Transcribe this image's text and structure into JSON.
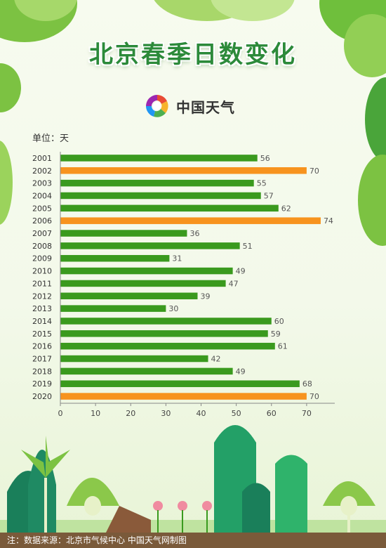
{
  "title": "北京春季日数变化",
  "logo": {
    "text": "中国天气",
    "icon": "china-weather-logo-icon"
  },
  "unit_label": "单位：天",
  "footer": "注：数据来源：北京市气候中心 中国天气网制图",
  "colors": {
    "normal": "#3a9a1e",
    "highlight": "#f7931e",
    "title": "#2c8a3a",
    "footer_bg": "#7a5a3a"
  },
  "chart_data": {
    "type": "bar",
    "orientation": "horizontal",
    "categories": [
      "2001",
      "2002",
      "2003",
      "2004",
      "2005",
      "2006",
      "2007",
      "2008",
      "2009",
      "2010",
      "2011",
      "2012",
      "2013",
      "2014",
      "2015",
      "2016",
      "2017",
      "2018",
      "2019",
      "2020"
    ],
    "values": [
      56,
      70,
      55,
      57,
      62,
      74,
      36,
      51,
      31,
      49,
      47,
      39,
      30,
      60,
      59,
      61,
      42,
      49,
      68,
      70
    ],
    "highlighted_categories": [
      "2002",
      "2006",
      "2020"
    ],
    "xlim": [
      0,
      78
    ],
    "xticks": [
      0,
      10,
      20,
      30,
      40,
      50,
      60,
      70
    ],
    "grid": false,
    "data_labels": true
  }
}
